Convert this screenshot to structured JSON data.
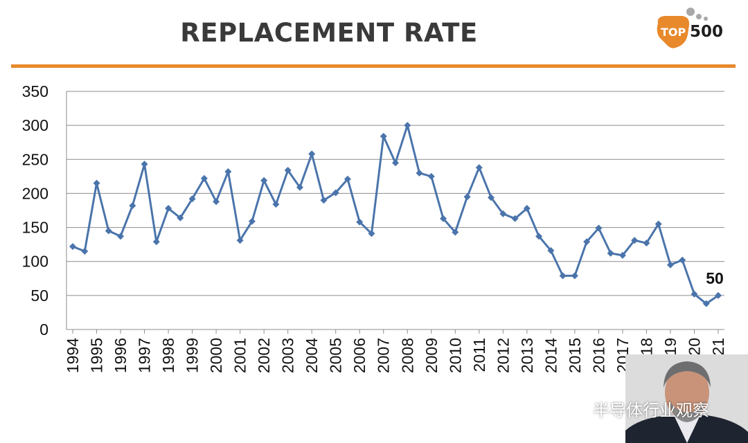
{
  "slide": {
    "title": "REPLACEMENT RATE",
    "accent_color": "#e8892c",
    "logo": {
      "badge_text": "TOP",
      "number_text": "500",
      "icon": "top500-logo"
    },
    "watermark": {
      "text": "半导体行业观察",
      "icon": "wechat-icon"
    },
    "presenter_icon": "presenter-video-thumbnail"
  },
  "chart_data": {
    "type": "line",
    "title": "REPLACEMENT RATE",
    "xlabel": "",
    "ylabel": "",
    "ylim": [
      0,
      350
    ],
    "yticks": [
      0,
      50,
      100,
      150,
      200,
      250,
      300,
      350
    ],
    "xlim": [
      1994,
      2021
    ],
    "xticks": [
      "1994",
      "1995",
      "1996",
      "1997",
      "1998",
      "1999",
      "2000",
      "2001",
      "2002",
      "2003",
      "2004",
      "2005",
      "2006",
      "2007",
      "2008",
      "2009",
      "2010",
      "2011",
      "2012",
      "2013",
      "2014",
      "2015",
      "2016",
      "2017",
      "2018",
      "2019",
      "2020",
      "2021"
    ],
    "grid": true,
    "legend": "none",
    "series": [
      {
        "color": "#4a74ab",
        "marker": "diamond",
        "points": [
          [
            1994.0,
            122
          ],
          [
            1994.5,
            115
          ],
          [
            1995.0,
            215
          ],
          [
            1995.5,
            145
          ],
          [
            1996.0,
            137
          ],
          [
            1996.5,
            182
          ],
          [
            1997.0,
            243
          ],
          [
            1997.5,
            129
          ],
          [
            1998.0,
            178
          ],
          [
            1998.5,
            164
          ],
          [
            1999.0,
            192
          ],
          [
            1999.5,
            222
          ],
          [
            2000.0,
            188
          ],
          [
            2000.5,
            232
          ],
          [
            2001.0,
            131
          ],
          [
            2001.5,
            159
          ],
          [
            2002.0,
            219
          ],
          [
            2002.5,
            184
          ],
          [
            2003.0,
            234
          ],
          [
            2003.5,
            209
          ],
          [
            2004.0,
            258
          ],
          [
            2004.5,
            190
          ],
          [
            2005.0,
            201
          ],
          [
            2005.5,
            221
          ],
          [
            2006.0,
            158
          ],
          [
            2006.5,
            141
          ],
          [
            2007.0,
            284
          ],
          [
            2007.5,
            245
          ],
          [
            2008.0,
            300
          ],
          [
            2008.5,
            230
          ],
          [
            2009.0,
            225
          ],
          [
            2009.5,
            163
          ],
          [
            2010.0,
            143
          ],
          [
            2010.5,
            195
          ],
          [
            2011.0,
            238
          ],
          [
            2011.5,
            194
          ],
          [
            2012.0,
            170
          ],
          [
            2012.5,
            163
          ],
          [
            2013.0,
            178
          ],
          [
            2013.5,
            137
          ],
          [
            2014.0,
            116
          ],
          [
            2014.5,
            79
          ],
          [
            2015.0,
            79
          ],
          [
            2015.5,
            129
          ],
          [
            2016.0,
            149
          ],
          [
            2016.5,
            112
          ],
          [
            2017.0,
            109
          ],
          [
            2017.5,
            131
          ],
          [
            2018.0,
            127
          ],
          [
            2018.5,
            155
          ],
          [
            2019.0,
            95
          ],
          [
            2019.5,
            102
          ],
          [
            2020.0,
            52
          ],
          [
            2020.5,
            38
          ],
          [
            2021.0,
            50
          ]
        ]
      }
    ],
    "annotations": [
      {
        "text": "50",
        "x": 2021.0,
        "y": 50
      }
    ]
  }
}
